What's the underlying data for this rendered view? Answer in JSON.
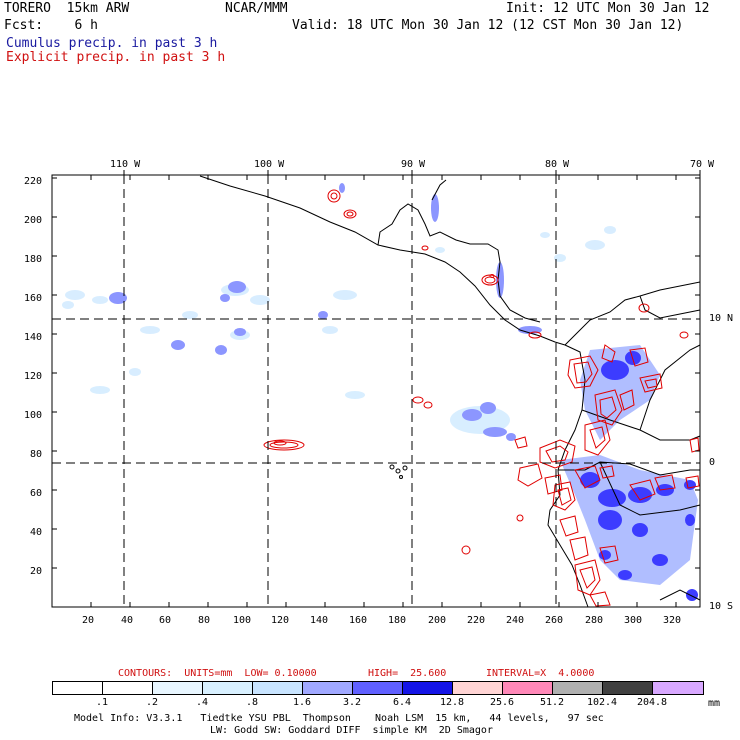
{
  "header": {
    "line1_left": "TORERO  15km ARW",
    "line1_mid": "NCAR/MMM",
    "line1_right": "Init: 12 UTC Mon 30 Jan 12",
    "line2_left": "Fcst:    6 h",
    "line2_right": "Valid: 18 UTC Mon 30 Jan 12 (12 CST Mon 30 Jan 12)",
    "legend_cumulus": "Cumulus precip. in past 3 h",
    "legend_explicit": "Explicit precip. in past 3 h"
  },
  "map": {
    "lon_labels": [
      "110 W",
      "100 W",
      "90 W",
      "80 W",
      "70 W"
    ],
    "lat_labels": [
      "10 N",
      "0",
      "10 S"
    ],
    "y_ticks": [
      "220",
      "200",
      "180",
      "160",
      "140",
      "120",
      "100",
      "80",
      "60",
      "40",
      "20"
    ],
    "x_ticks": [
      "20",
      "40",
      "60",
      "80",
      "100",
      "120",
      "140",
      "160",
      "180",
      "200",
      "220",
      "240",
      "260",
      "280",
      "300",
      "320"
    ],
    "colors": {
      "cumulus_light": "#c8e8ff",
      "cumulus_mid": "#7080ff",
      "cumulus_dark": "#2020ff",
      "explicit_contour": "#e00000",
      "coastline": "#000000"
    }
  },
  "contour_info": {
    "label": "CONTOURS:  UNITS=mm  LOW= 0.10000",
    "high": "HIGH=  25.600",
    "interval": "INTERVAL=X  4.0000"
  },
  "colorbar": {
    "unit": "mm",
    "levels": [
      ".1",
      ".2",
      ".4",
      ".8",
      "1.6",
      "3.2",
      "6.4",
      "12.8",
      "25.6",
      "51.2",
      "102.4",
      "204.8"
    ],
    "colors": [
      "#ffffff",
      "#ffffff",
      "#e8f6ff",
      "#d8f0ff",
      "#c8e4ff",
      "#a0a8ff",
      "#6060ff",
      "#1414e6",
      "#ffd4d4",
      "#ff88b8",
      "#b0b0b0",
      "#404040",
      "#d8a8ff"
    ]
  },
  "footer": {
    "line1": "Model Info: V3.3.1   Tiedtke YSU PBL  Thompson    Noah LSM  15 km,   44 levels,   97 sec",
    "line2": "LW: Godd SW: Goddard DIFF  simple KM  2D Smagor"
  }
}
